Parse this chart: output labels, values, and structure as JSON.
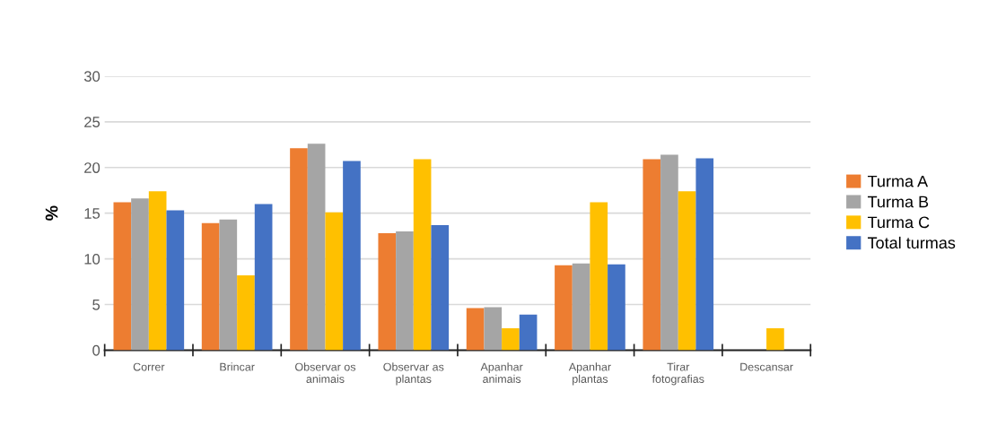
{
  "chart_data": {
    "type": "bar",
    "ylabel": "%",
    "categories": [
      "Correr",
      "Brincar",
      "Observar os\nanimais",
      "Observar as\nplantas",
      "Apanhar\nanimais",
      "Apanhar\nplantas",
      "Tirar\nfotografias",
      "Descansar"
    ],
    "series": [
      {
        "name": "Turma A",
        "color": "#ed7d31",
        "values": [
          16.2,
          13.9,
          22.1,
          12.8,
          4.6,
          9.3,
          20.9,
          0
        ]
      },
      {
        "name": "Turma B",
        "color": "#a5a5a5",
        "values": [
          16.6,
          14.3,
          22.6,
          13.0,
          4.7,
          9.5,
          21.4,
          0
        ]
      },
      {
        "name": "Turma C",
        "color": "#ffc000",
        "values": [
          17.4,
          8.2,
          15.1,
          20.9,
          2.4,
          16.2,
          17.4,
          2.4
        ]
      },
      {
        "name": "Total turmas",
        "color": "#4472c4",
        "values": [
          15.3,
          16.0,
          20.7,
          13.7,
          3.9,
          9.4,
          21.0,
          0
        ]
      }
    ],
    "ylim": [
      0,
      30
    ],
    "yticks": [
      0,
      5,
      10,
      15,
      20,
      25,
      30
    ],
    "grid": "y",
    "legend": "right"
  }
}
